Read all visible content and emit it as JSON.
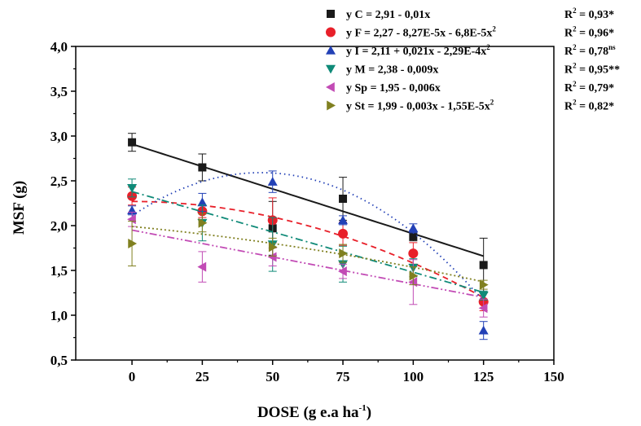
{
  "chart_data": {
    "type": "scatter",
    "xlabel": {
      "main": "DOSE (g e.a ha",
      "sup": "-1",
      "tail": ")"
    },
    "ylabel": "MSF (g)",
    "xlim": [
      -20,
      150
    ],
    "ylim": [
      0.5,
      4.0
    ],
    "x_ticks": [
      "0",
      "25",
      "50",
      "75",
      "100",
      "125",
      "150"
    ],
    "y_ticks": [
      "0,5",
      "1,0",
      "1,5",
      "2,0",
      "2,5",
      "3,0",
      "3,5",
      "4,0"
    ],
    "x": [
      0,
      25,
      50,
      75,
      100,
      125
    ],
    "series": [
      {
        "key": "C",
        "marker": "square",
        "color": "#1a1a1a",
        "values": [
          2.93,
          2.65,
          1.97,
          2.3,
          1.88,
          1.56
        ],
        "errors": [
          0.1,
          0.15,
          0.3,
          0.24,
          0.05,
          0.3
        ],
        "fit": {
          "type": "linear",
          "coef": [
            2.91,
            -0.01
          ],
          "style": "solid"
        },
        "legend": {
          "eq": "y C = 2,91 - 0,01x",
          "r2": "= 0,93*",
          "r2_sup": ""
        }
      },
      {
        "key": "F",
        "marker": "circle",
        "color": "#e8202a",
        "values": [
          2.33,
          2.16,
          2.06,
          1.91,
          1.69,
          1.15
        ],
        "errors": [
          0.1,
          0.07,
          0.25,
          0.13,
          0.12,
          0.1
        ],
        "fit": {
          "type": "quadratic",
          "coef": [
            2.27,
            -8.27e-05,
            -6.8e-05
          ],
          "style": "dash"
        },
        "legend": {
          "eq": "y F = 2,27 - 8,27E-5x - 6,8E-5x",
          "eq_sup": "2",
          "r2": "= 0,96*",
          "r2_sup": ""
        }
      },
      {
        "key": "I",
        "marker": "triangle-up",
        "color": "#2341b6",
        "values": [
          2.17,
          2.26,
          2.49,
          2.06,
          1.97,
          0.83
        ],
        "errors": [
          0.05,
          0.1,
          0.12,
          0.05,
          0.05,
          0.1
        ],
        "fit": {
          "type": "quadratic",
          "coef": [
            2.11,
            0.021,
            -0.000229
          ],
          "style": "dot"
        },
        "legend": {
          "eq": "y I = 2,11 + 0,021x - 2,29E-4x",
          "eq_sup": "2",
          "r2": "= 0,78",
          "r2_sup": "ns"
        }
      },
      {
        "key": "M",
        "marker": "triangle-down",
        "color": "#0f8a78",
        "values": [
          2.42,
          2.03,
          1.79,
          1.57,
          1.53,
          1.22
        ],
        "errors": [
          0.1,
          0.2,
          0.3,
          0.2,
          0.1,
          0.05
        ],
        "fit": {
          "type": "linear",
          "coef": [
            2.38,
            -0.009
          ],
          "style": "dashdot"
        },
        "legend": {
          "eq": "y M = 2,38 - 0,009x",
          "r2": "= 0,95**",
          "r2_sup": ""
        }
      },
      {
        "key": "Sp",
        "marker": "triangle-left",
        "color": "#c24bb5",
        "values": [
          2.07,
          1.54,
          1.65,
          1.49,
          1.37,
          1.08
        ],
        "errors": [
          0.08,
          0.17,
          0.1,
          0.08,
          0.25,
          0.1
        ],
        "fit": {
          "type": "linear",
          "coef": [
            1.95,
            -0.006
          ],
          "style": "dashdotdot"
        },
        "legend": {
          "eq": "y Sp = 1,95 - 0,006x",
          "r2": "= 0,79*",
          "r2_sup": ""
        }
      },
      {
        "key": "St",
        "marker": "triangle-right",
        "color": "#808020",
        "values": [
          1.8,
          2.03,
          1.76,
          1.69,
          1.44,
          1.34
        ],
        "errors": [
          0.25,
          0.1,
          0.1,
          0.1,
          0.1,
          0.05
        ],
        "fit": {
          "type": "quadratic",
          "coef": [
            1.99,
            -0.003,
            -1.55e-05
          ],
          "style": "shortdot"
        },
        "legend": {
          "eq": "y St = 1,99 - 0,003x - 1,55E-5x",
          "eq_sup": "2",
          "r2": "= 0,82*",
          "r2_sup": ""
        }
      }
    ],
    "legend_r2_label": "R",
    "legend_r2_sup": "2",
    "legend_placement": "top-right",
    "grid": false
  }
}
